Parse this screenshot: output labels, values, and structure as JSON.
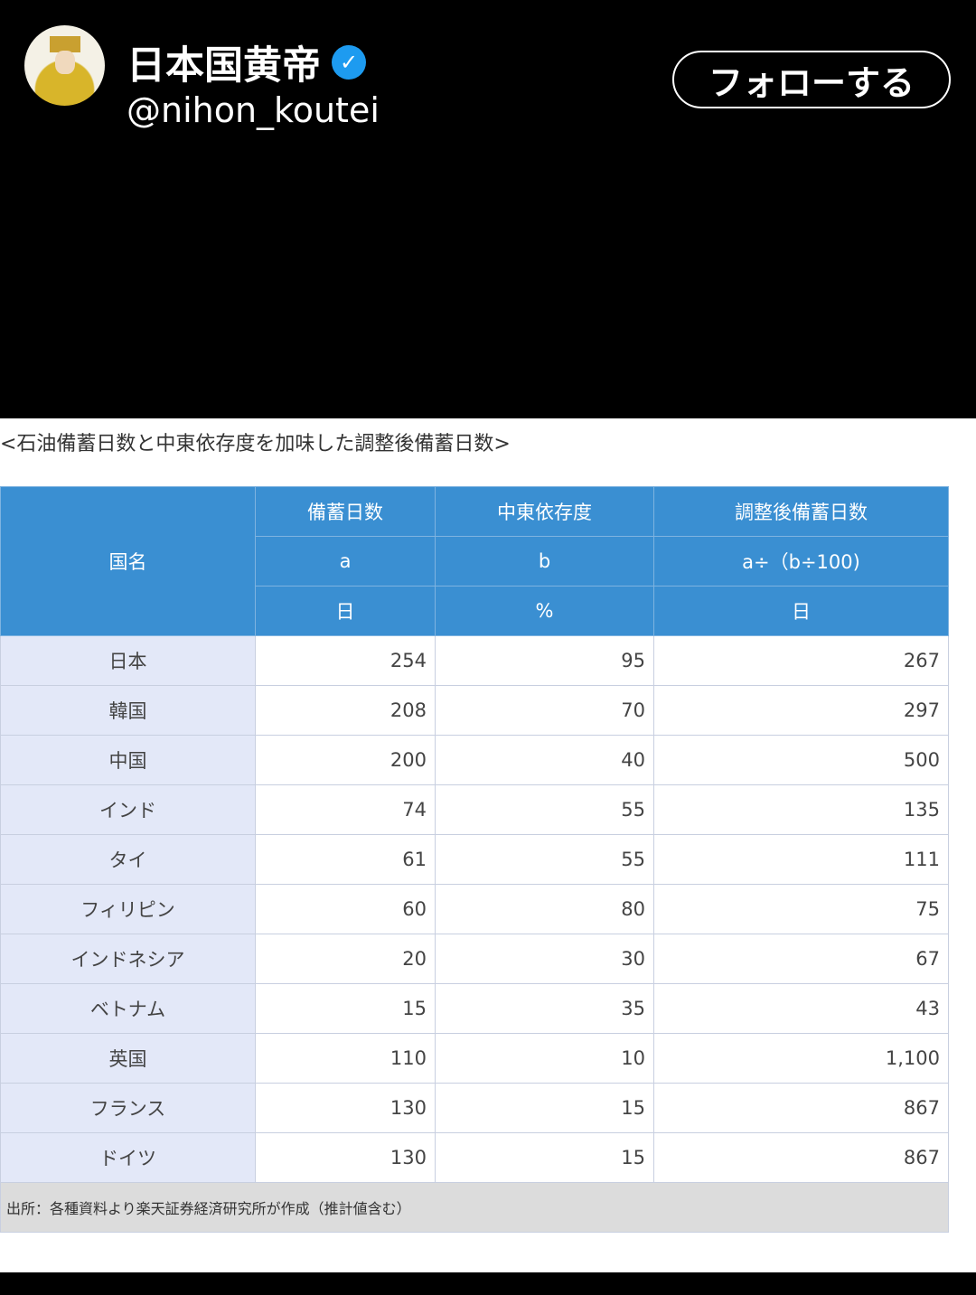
{
  "profile": {
    "display_name": "日本国黄帝",
    "handle": "@nihon_koutei",
    "verified_icon": "verified-badge-icon",
    "follow_label": "フォローする"
  },
  "table": {
    "title": "<石油備蓄日数と中東依存度を加味した調整後備蓄日数>",
    "header": {
      "country": "国名",
      "col_a": [
        "備蓄日数",
        "a",
        "日"
      ],
      "col_b": [
        "中東依存度",
        "b",
        "%"
      ],
      "col_c": [
        "調整後備蓄日数",
        "a÷（b÷100)",
        "日"
      ]
    },
    "rows": [
      [
        "日本",
        "254",
        "95",
        "267"
      ],
      [
        "韓国",
        "208",
        "70",
        "297"
      ],
      [
        "中国",
        "200",
        "40",
        "500"
      ],
      [
        "インド",
        "74",
        "55",
        "135"
      ],
      [
        "タイ",
        "61",
        "55",
        "111"
      ],
      [
        "フィリピン",
        "60",
        "80",
        "75"
      ],
      [
        "インドネシア",
        "20",
        "30",
        "67"
      ],
      [
        "ベトナム",
        "15",
        "35",
        "43"
      ],
      [
        "英国",
        "110",
        "10",
        "1,100"
      ],
      [
        "フランス",
        "130",
        "15",
        "867"
      ],
      [
        "ドイツ",
        "130",
        "15",
        "867"
      ]
    ],
    "source": "出所：各種資料より楽天証券経済研究所が作成（推計値含む）"
  }
}
